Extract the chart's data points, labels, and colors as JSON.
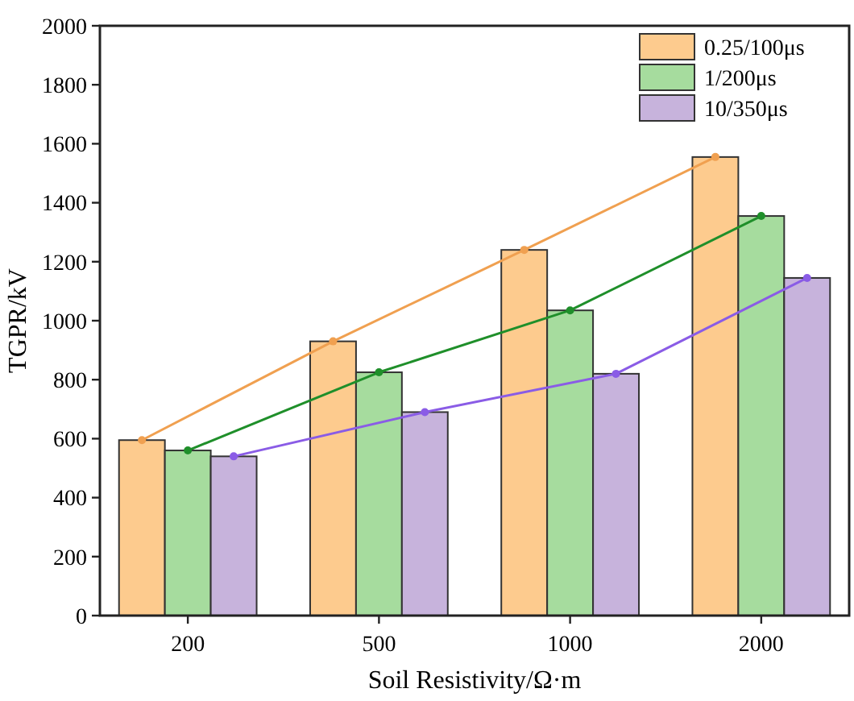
{
  "chart_data": {
    "type": "bar",
    "xlabel": "Soil Resistivity/Ω·m",
    "ylabel": "TGPR/kV",
    "categories": [
      "200",
      "500",
      "1000",
      "2000"
    ],
    "series": [
      {
        "name": "0.25/100μs",
        "color": "#fdcb8e",
        "values": [
          595,
          930,
          1240,
          1555
        ]
      },
      {
        "name": "1/200μs",
        "color": "#a6dc9e",
        "values": [
          560,
          825,
          1035,
          1355
        ]
      },
      {
        "name": "10/350μs",
        "color": "#c7b3dc",
        "values": [
          540,
          690,
          820,
          1145
        ]
      },
      {
        "type": "line",
        "color": "#f0a050",
        "values": [
          595,
          930,
          1240,
          1555
        ]
      },
      {
        "type": "line",
        "color": "#1f8f2a",
        "values": [
          560,
          825,
          1035,
          1355
        ]
      },
      {
        "type": "line",
        "color": "#8a5ce6",
        "values": [
          540,
          690,
          820,
          1145
        ]
      }
    ],
    "ylim": [
      0,
      2000
    ],
    "yticks": [
      0,
      200,
      400,
      600,
      800,
      1000,
      1200,
      1400,
      1600,
      1800,
      2000
    ],
    "legend": "top right",
    "marker": "circle",
    "grid": false
  }
}
